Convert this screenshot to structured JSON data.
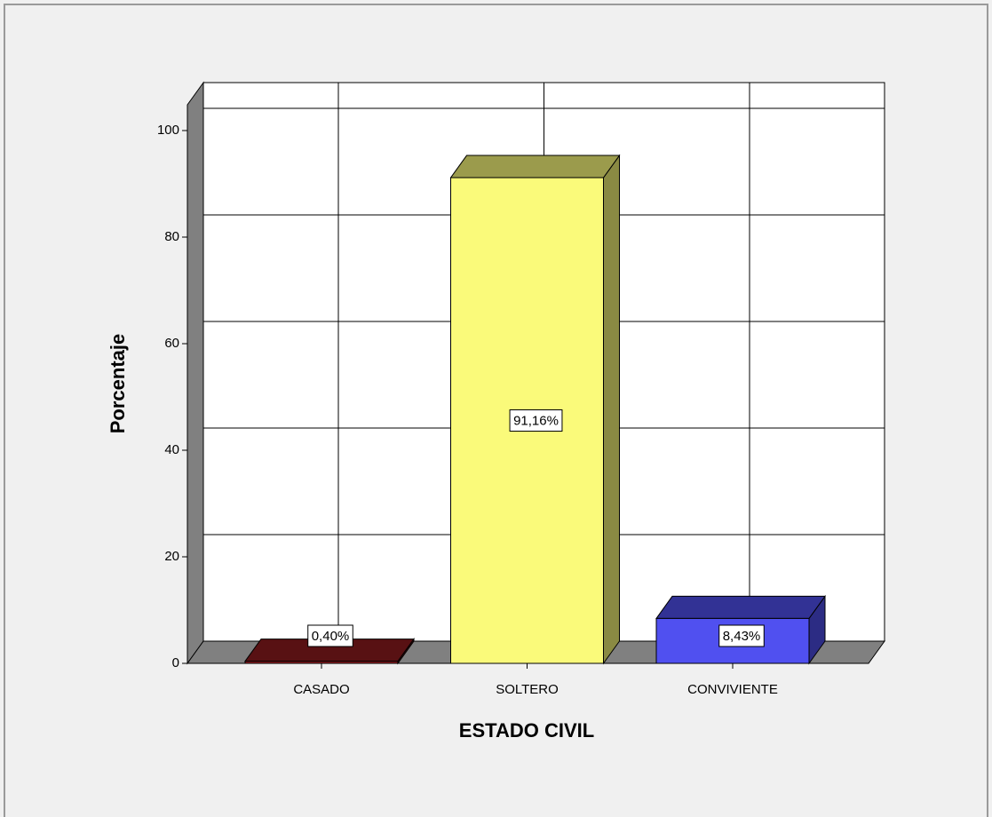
{
  "chart_data": {
    "type": "bar3d",
    "categories": [
      "CASADO",
      "SOLTERO",
      "CONVIVIENTE"
    ],
    "values": [
      0.4,
      91.16,
      8.43
    ],
    "value_labels": [
      "0,40%",
      "91,16%",
      "8,43%"
    ],
    "colors": [
      "#8e1b1f",
      "#fafa7a",
      "#5050f0"
    ],
    "x_label": "ESTADO CIVIL",
    "y_label": "Porcentaje",
    "ylim": [
      0,
      105
    ],
    "yticks": [
      0,
      20,
      40,
      60,
      80,
      100
    ],
    "grid": true
  }
}
